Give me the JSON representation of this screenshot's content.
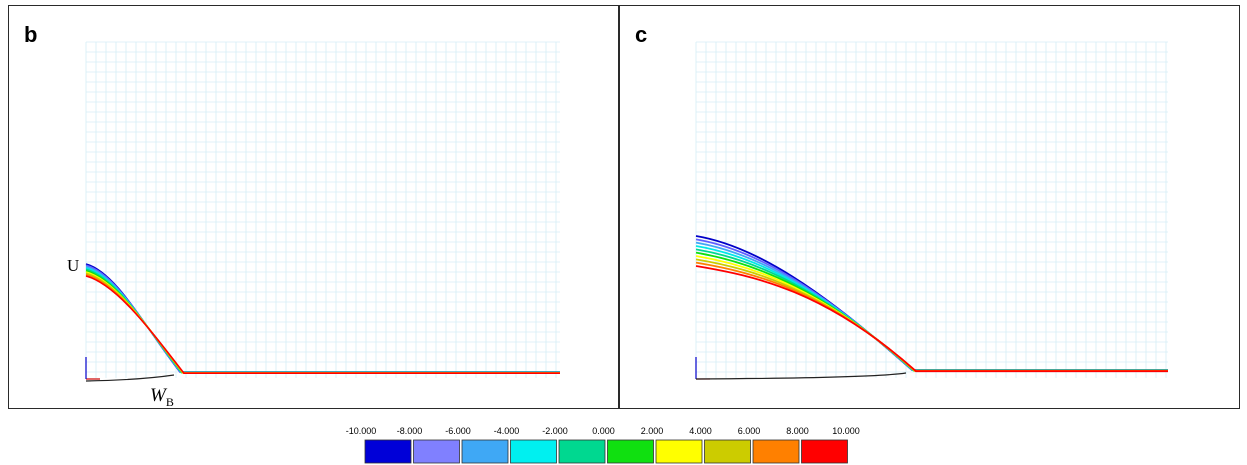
{
  "panels": [
    {
      "id": "b",
      "letter": "b",
      "label_left": "U",
      "label_bottom": "W",
      "label_bottom_sub": "B"
    },
    {
      "id": "c",
      "letter": "c"
    }
  ],
  "legend": {
    "ticks": [
      "-10.000",
      "-8.000",
      "-6.000",
      "-4.000",
      "-2.000",
      "0.000",
      "2.000",
      "4.000",
      "6.000",
      "8.000",
      "10.000"
    ],
    "colors": [
      "#0000d8",
      "#8080ff",
      "#3fa8f5",
      "#00f0f0",
      "#00d890",
      "#10e010",
      "#ffff00",
      "#cccc00",
      "#ff8000",
      "#ff0000"
    ]
  }
}
